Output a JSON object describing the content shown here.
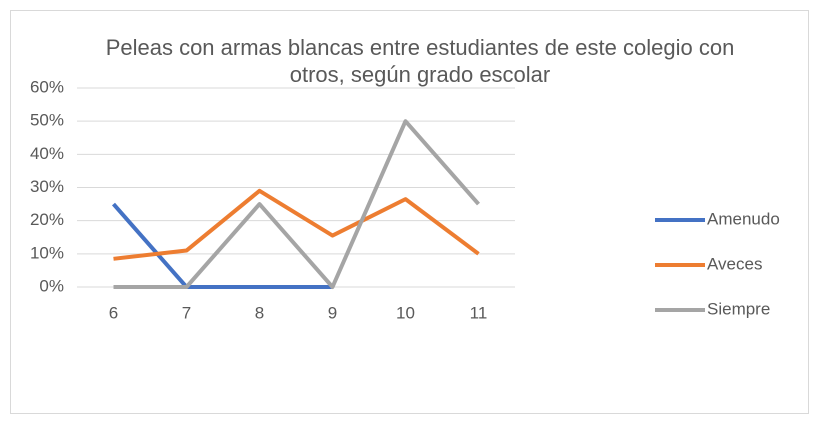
{
  "chart_data": {
    "type": "line",
    "title": "Peleas con armas blancas entre estudiantes de este colegio con otros, según grado escolar",
    "categories": [
      "6",
      "7",
      "8",
      "9",
      "10",
      "11"
    ],
    "series": [
      {
        "name": "Amenudo",
        "color": "#4472c4",
        "values": [
          25,
          0,
          0,
          0,
          null,
          null
        ]
      },
      {
        "name": "Aveces",
        "color": "#ed7d31",
        "values": [
          8.5,
          11,
          29,
          15.5,
          26.5,
          10
        ]
      },
      {
        "name": "Siempre",
        "color": "#a5a5a5",
        "values": [
          0,
          0,
          25,
          0,
          50,
          25
        ]
      }
    ],
    "ylim": [
      0,
      60
    ],
    "yticks": [
      {
        "value": 0,
        "label": "0%"
      },
      {
        "value": 10,
        "label": "10%"
      },
      {
        "value": 20,
        "label": "20%"
      },
      {
        "value": 30,
        "label": "30%"
      },
      {
        "value": 40,
        "label": "40%"
      },
      {
        "value": 50,
        "label": "50%"
      },
      {
        "value": 60,
        "label": "60%"
      }
    ],
    "grid": true,
    "legend": "right"
  }
}
